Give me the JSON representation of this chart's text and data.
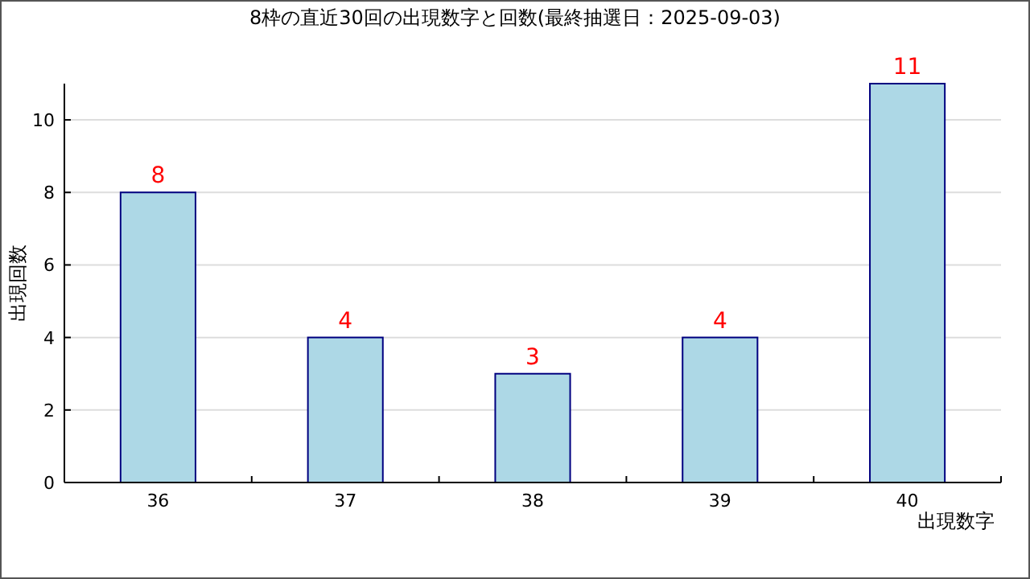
{
  "chart_data": {
    "type": "bar",
    "title": "8枠の直近30回の出現数字と回数(最終抽選日：2025-09-03)",
    "xlabel": "出現数字",
    "ylabel": "出現回数",
    "categories": [
      "36",
      "37",
      "38",
      "39",
      "40"
    ],
    "values": [
      8,
      4,
      3,
      4,
      11
    ],
    "color": "#add8e6",
    "ylim": [
      0,
      11
    ],
    "yticks": [
      0,
      2,
      4,
      6,
      8,
      10
    ],
    "grid": "y",
    "data_labels": true
  }
}
